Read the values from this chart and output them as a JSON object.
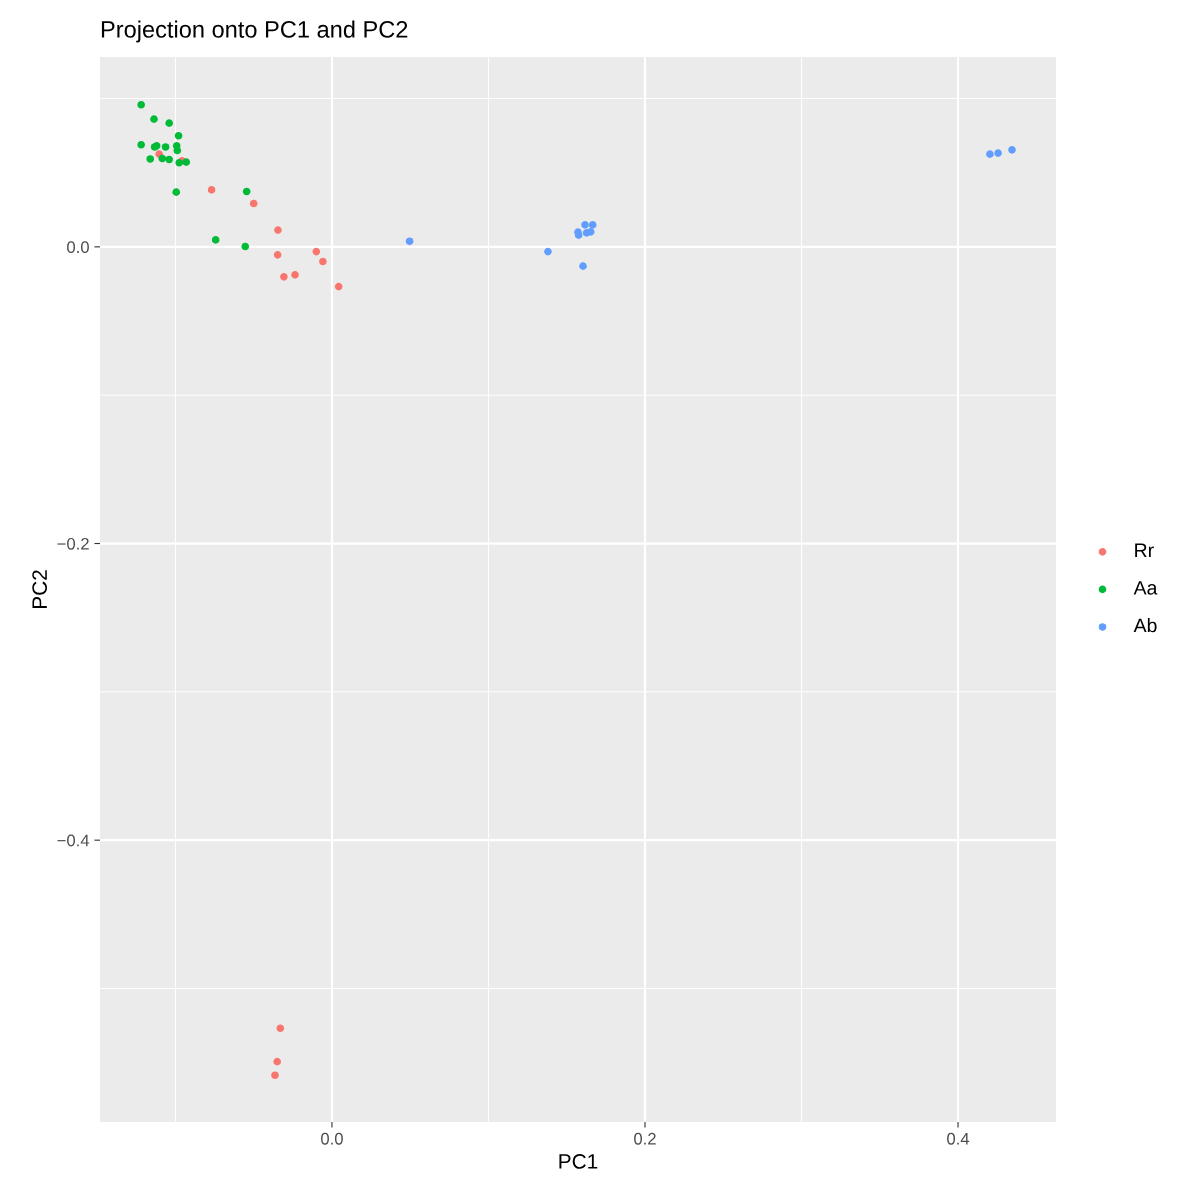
{
  "chart_data": {
    "type": "scatter",
    "title": "Projection onto PC1 and PC2",
    "xlabel": "PC1",
    "ylabel": "PC2",
    "xlim": [
      -0.1482,
      0.4626
    ],
    "ylim": [
      -0.59,
      0.128
    ],
    "xticks": [
      {
        "value": 0,
        "label": "0.0"
      },
      {
        "value": 0.2,
        "label": "0.2"
      },
      {
        "value": 0.4,
        "label": "0.4"
      }
    ],
    "yticks": [
      {
        "value": -0.4,
        "label": "−0.4"
      },
      {
        "value": -0.2,
        "label": "−0.2"
      },
      {
        "value": 0,
        "label": "0.0"
      }
    ],
    "grid": true,
    "legend": "right",
    "marker": "circle",
    "series": [
      {
        "name": "Rr",
        "color": "#f8766d",
        "x": [
          -0.1104,
          -0.0958,
          -0.0769,
          -0.05,
          -0.0345,
          -0.0347,
          -0.01,
          -0.0058,
          -0.0307,
          -0.0236,
          0.0043,
          -0.033,
          -0.035,
          -0.0364
        ],
        "values": [
          0.0625,
          0.058,
          0.0384,
          0.0292,
          0.0113,
          -0.0054,
          -0.0032,
          -0.0099,
          -0.0202,
          -0.0189,
          -0.0268,
          -0.5268,
          -0.5493,
          -0.5585
        ]
      },
      {
        "name": "Aa",
        "color": "#00ba38",
        "x": [
          -0.1219,
          -0.1137,
          -0.104,
          -0.098,
          -0.1219,
          -0.1133,
          -0.112,
          -0.1063,
          -0.0992,
          -0.0988,
          -0.1161,
          -0.1084,
          -0.104,
          -0.0976,
          -0.0931,
          -0.0995,
          -0.0545,
          -0.0743,
          -0.0554
        ],
        "values": [
          0.0958,
          0.0861,
          0.0834,
          0.0749,
          0.0688,
          0.0673,
          0.0681,
          0.0673,
          0.0681,
          0.065,
          0.0592,
          0.0596,
          0.0589,
          0.0567,
          0.0571,
          0.0369,
          0.0373,
          0.0047,
          0.0002
        ]
      },
      {
        "name": "Ab",
        "color": "#619cff",
        "x": [
          0.0496,
          0.138,
          0.1604,
          0.1572,
          0.1576,
          0.1617,
          0.1666,
          0.1627,
          0.1653,
          0.4204,
          0.4256,
          0.4345
        ],
        "values": [
          0.0038,
          -0.0032,
          -0.013,
          0.0099,
          0.0079,
          0.0148,
          0.0148,
          0.0094,
          0.0101,
          0.0625,
          0.0632,
          0.0654
        ]
      }
    ]
  }
}
